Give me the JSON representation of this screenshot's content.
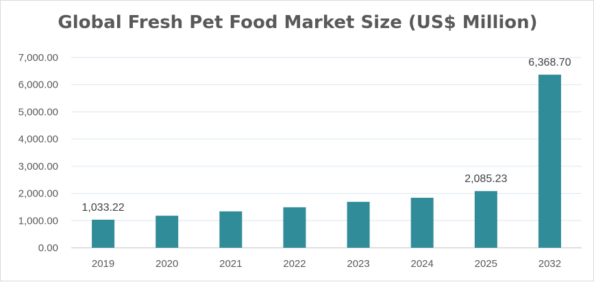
{
  "chart_data": {
    "type": "bar",
    "title": "Global Fresh Pet Food Market Size (US$ Million)",
    "xlabel": "",
    "ylabel": "",
    "categories": [
      "2019",
      "2020",
      "2021",
      "2022",
      "2023",
      "2024",
      "2025",
      "2032"
    ],
    "values": [
      1033.22,
      1180,
      1340,
      1490,
      1690,
      1840,
      2085.23,
      6368.7
    ],
    "data_labels": [
      "1,033.22",
      "",
      "",
      "",
      "",
      "",
      "2,085.23",
      "6,368.70"
    ],
    "ylim": [
      0,
      7000
    ],
    "yticks": [
      0,
      1000,
      2000,
      3000,
      4000,
      5000,
      6000,
      7000
    ],
    "ytick_labels": [
      "0.00",
      "1,000.00",
      "2,000.00",
      "3,000.00",
      "4,000.00",
      "5,000.00",
      "6,000.00",
      "7,000.00"
    ],
    "grid": true,
    "legend": "none",
    "bar_color": "#318C9A",
    "grid_color": "#D9E6F2"
  }
}
